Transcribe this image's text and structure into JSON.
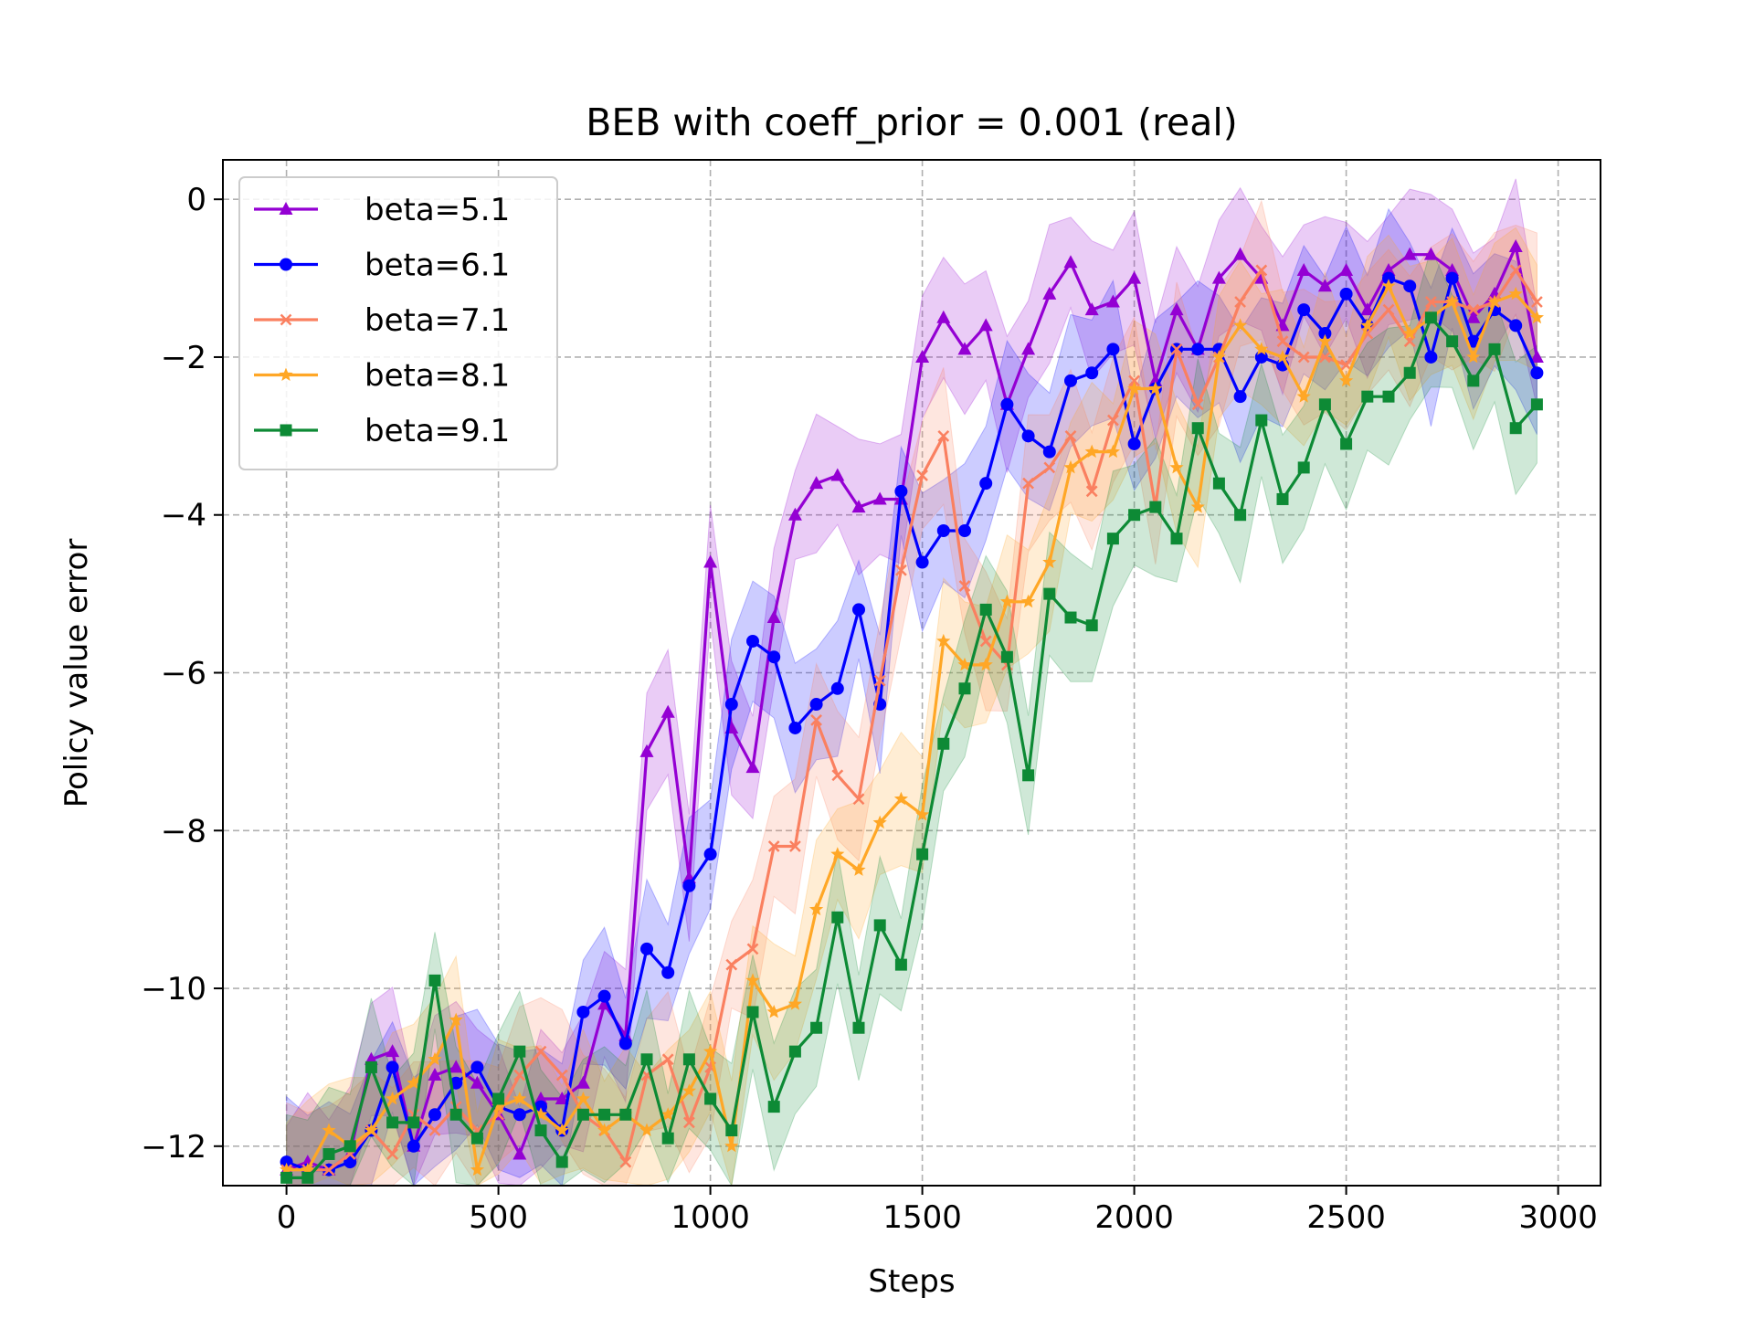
{
  "chart_data": {
    "type": "line",
    "title": "BEB with coeff_prior = 0.001 (real)",
    "xlabel": "Steps",
    "ylabel": "Policy value error",
    "xlim": [
      -150,
      3100
    ],
    "ylim": [
      -12.5,
      0.5
    ],
    "xticks": [
      0,
      500,
      1000,
      1500,
      2000,
      2500,
      3000
    ],
    "yticks": [
      -12,
      -10,
      -8,
      -6,
      -4,
      -2,
      0
    ],
    "xtick_labels": [
      "0",
      "500",
      "1000",
      "1500",
      "2000",
      "2500",
      "3000"
    ],
    "ytick_labels": [
      "−12",
      "−10",
      "−8",
      "−6",
      "−4",
      "−2",
      "0"
    ],
    "grid": true,
    "legend_position": "top-left",
    "shaded_band_half_width": 0.55,
    "x": [
      0,
      50,
      100,
      150,
      200,
      250,
      300,
      350,
      400,
      450,
      500,
      550,
      600,
      650,
      700,
      750,
      800,
      850,
      900,
      950,
      1000,
      1050,
      1100,
      1150,
      1200,
      1250,
      1300,
      1350,
      1400,
      1450,
      1500,
      1550,
      1600,
      1650,
      1700,
      1750,
      1800,
      1850,
      1900,
      1950,
      2000,
      2050,
      2100,
      2150,
      2200,
      2250,
      2300,
      2350,
      2400,
      2450,
      2500,
      2550,
      2600,
      2650,
      2700,
      2750,
      2800,
      2850,
      2900,
      2950
    ],
    "series": [
      {
        "name": "beta=5.1",
        "color": "#9400d3",
        "marker": "triangle",
        "values": [
          -12.3,
          -12.2,
          -12.3,
          -12.1,
          -10.9,
          -10.8,
          -12.0,
          -11.1,
          -11.0,
          -11.2,
          -11.6,
          -12.1,
          -11.4,
          -11.4,
          -11.2,
          -10.2,
          -10.6,
          -7.0,
          -6.5,
          -8.6,
          -4.6,
          -6.7,
          -7.2,
          -5.3,
          -4.0,
          -3.6,
          -3.5,
          -3.9,
          -3.8,
          -3.8,
          -2.0,
          -1.5,
          -1.9,
          -1.6,
          -2.6,
          -1.9,
          -1.2,
          -0.8,
          -1.4,
          -1.3,
          -1.0,
          -2.3,
          -1.4,
          -1.9,
          -1.0,
          -0.7,
          -1.0,
          -1.6,
          -0.9,
          -1.1,
          -0.9,
          -1.4,
          -0.9,
          -0.7,
          -0.7,
          -0.9,
          -1.5,
          -1.2,
          -0.6,
          -2.0
        ]
      },
      {
        "name": "beta=6.1",
        "color": "#0000ff",
        "marker": "circle",
        "values": [
          -12.2,
          -12.3,
          -12.3,
          -12.2,
          -11.8,
          -11.0,
          -12.0,
          -11.6,
          -11.2,
          -11.0,
          -11.5,
          -11.6,
          -11.5,
          -11.8,
          -10.3,
          -10.1,
          -10.7,
          -9.5,
          -9.8,
          -8.7,
          -8.3,
          -6.4,
          -5.6,
          -5.8,
          -6.7,
          -6.4,
          -6.2,
          -5.2,
          -6.4,
          -3.7,
          -4.6,
          -4.2,
          -4.2,
          -3.6,
          -2.6,
          -3.0,
          -3.2,
          -2.3,
          -2.2,
          -1.9,
          -3.1,
          -2.4,
          -1.9,
          -1.9,
          -1.9,
          -2.5,
          -2.0,
          -2.1,
          -1.4,
          -1.7,
          -1.2,
          -1.6,
          -1.0,
          -1.1,
          -2.0,
          -1.0,
          -1.8,
          -1.4,
          -1.6,
          -2.2
        ]
      },
      {
        "name": "beta=7.1",
        "color": "#fa8060",
        "marker": "x",
        "values": [
          -12.3,
          -12.3,
          -12.3,
          -12.1,
          -11.8,
          -12.1,
          -11.6,
          -11.8,
          -11.5,
          -11.8,
          -11.6,
          -11.1,
          -10.8,
          -11.1,
          -11.6,
          -11.8,
          -12.2,
          -11.1,
          -10.9,
          -11.7,
          -11.0,
          -9.7,
          -9.5,
          -8.2,
          -8.2,
          -6.6,
          -7.3,
          -7.6,
          -6.1,
          -4.7,
          -3.5,
          -3.0,
          -4.9,
          -5.6,
          -5.9,
          -3.6,
          -3.4,
          -3.0,
          -3.7,
          -2.8,
          -2.3,
          -3.9,
          -1.9,
          -2.6,
          -2.0,
          -1.3,
          -0.9,
          -1.8,
          -2.0,
          -2.0,
          -2.1,
          -1.7,
          -1.4,
          -1.8,
          -1.3,
          -1.3,
          -1.4,
          -1.3,
          -0.9,
          -1.3
        ]
      },
      {
        "name": "beta=8.1",
        "color": "#ffa726",
        "marker": "star",
        "values": [
          -12.3,
          -12.3,
          -11.8,
          -12.0,
          -11.8,
          -11.4,
          -11.2,
          -10.9,
          -10.4,
          -12.3,
          -11.5,
          -11.4,
          -11.6,
          -11.8,
          -11.4,
          -11.8,
          -11.6,
          -11.8,
          -11.6,
          -11.3,
          -10.8,
          -12.0,
          -9.9,
          -10.3,
          -10.2,
          -9.0,
          -8.3,
          -8.5,
          -7.9,
          -7.6,
          -7.8,
          -5.6,
          -5.9,
          -5.9,
          -5.1,
          -5.1,
          -4.6,
          -3.4,
          -3.2,
          -3.2,
          -2.4,
          -2.4,
          -3.4,
          -3.9,
          -2.0,
          -1.6,
          -1.9,
          -2.0,
          -2.5,
          -1.8,
          -2.3,
          -1.6,
          -1.1,
          -1.7,
          -1.5,
          -1.3,
          -2.0,
          -1.3,
          -1.2,
          -1.5
        ]
      },
      {
        "name": "beta=9.1",
        "color": "#0d8a35",
        "marker": "square",
        "values": [
          -12.4,
          -12.4,
          -12.1,
          -12.0,
          -11.0,
          -11.7,
          -11.7,
          -9.9,
          -11.6,
          -11.9,
          -11.4,
          -10.8,
          -11.8,
          -12.2,
          -11.6,
          -11.6,
          -11.6,
          -10.9,
          -11.9,
          -10.9,
          -11.4,
          -11.8,
          -10.3,
          -11.5,
          -10.8,
          -10.5,
          -9.1,
          -10.5,
          -9.2,
          -9.7,
          -8.3,
          -6.9,
          -6.2,
          -5.2,
          -5.8,
          -7.3,
          -5.0,
          -5.3,
          -5.4,
          -4.3,
          -4.0,
          -3.9,
          -4.3,
          -2.9,
          -3.6,
          -4.0,
          -2.8,
          -3.8,
          -3.4,
          -2.6,
          -3.1,
          -2.5,
          -2.5,
          -2.2,
          -1.5,
          -1.8,
          -2.3,
          -1.9,
          -2.9,
          -2.6
        ]
      }
    ]
  }
}
